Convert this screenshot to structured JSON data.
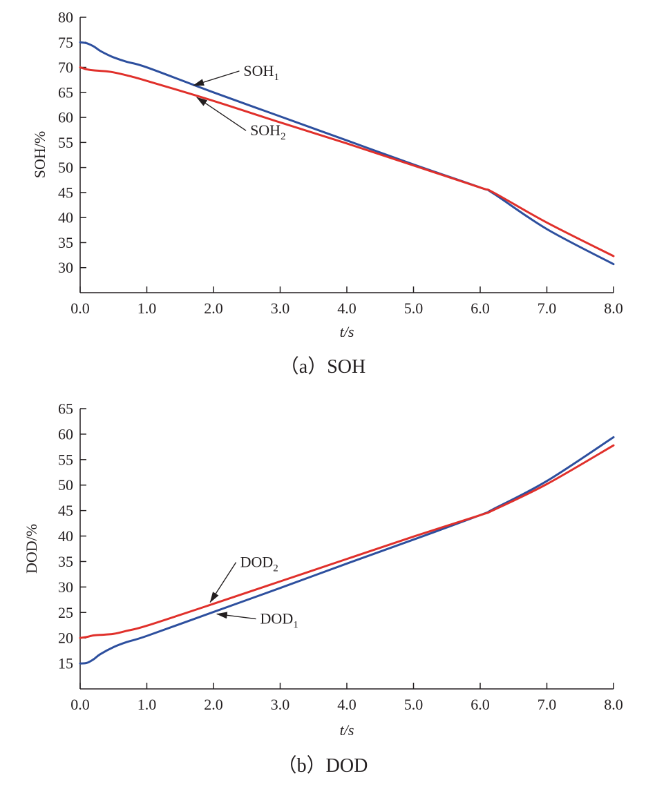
{
  "colors": {
    "blue": "#2d4f9e",
    "red": "#e0302b",
    "axis": "#231f20"
  },
  "chart_data": [
    {
      "id": "soh",
      "type": "line",
      "caption": "（a）SOH",
      "xlabel": "t/s",
      "ylabel": "SOH/%",
      "xlim": [
        0,
        8
      ],
      "ylim": [
        25,
        80
      ],
      "xticks": [
        0,
        1,
        2,
        3,
        4,
        5,
        6,
        7,
        8
      ],
      "xtick_labels": [
        "0.0",
        "1.0",
        "2.0",
        "3.0",
        "4.0",
        "5.0",
        "6.0",
        "7.0",
        "8.0"
      ],
      "yticks": [
        30,
        35,
        40,
        45,
        50,
        55,
        60,
        65,
        70,
        75,
        80
      ],
      "ytick_labels": [
        "30",
        "35",
        "40",
        "45",
        "50",
        "55",
        "60",
        "65",
        "70",
        "75",
        "80"
      ],
      "series": [
        {
          "name": "SOH1",
          "label_main": "SOH",
          "label_sub": "1",
          "color": "#2d4f9e",
          "points": [
            [
              0,
              75
            ],
            [
              0.1,
              74.8
            ],
            [
              0.2,
              74.2
            ],
            [
              0.3,
              73.3
            ],
            [
              0.4,
              72.6
            ],
            [
              0.5,
              72.0
            ],
            [
              0.7,
              71.1
            ],
            [
              1.0,
              70.0
            ],
            [
              2.0,
              65.0
            ],
            [
              3.0,
              60.2
            ],
            [
              4.0,
              55.4
            ],
            [
              5.0,
              50.6
            ],
            [
              6.0,
              46.0
            ],
            [
              6.2,
              44.8
            ],
            [
              7.0,
              37.7
            ],
            [
              8.0,
              30.7
            ]
          ]
        },
        {
          "name": "SOH2",
          "label_main": "SOH",
          "label_sub": "2",
          "color": "#e0302b",
          "points": [
            [
              0,
              70
            ],
            [
              0.1,
              69.6
            ],
            [
              0.2,
              69.4
            ],
            [
              0.3,
              69.3
            ],
            [
              0.4,
              69.2
            ],
            [
              0.5,
              69.0
            ],
            [
              0.7,
              68.4
            ],
            [
              1.0,
              67.3
            ],
            [
              2.0,
              63.3
            ],
            [
              3.0,
              59.0
            ],
            [
              4.0,
              54.8
            ],
            [
              5.0,
              50.4
            ],
            [
              6.0,
              46.0
            ],
            [
              6.2,
              45.0
            ],
            [
              7.0,
              39.0
            ],
            [
              8.0,
              32.3
            ]
          ]
        }
      ],
      "annotations": [
        {
          "main": "SOH",
          "sub": "1",
          "series": "SOH1",
          "arrow_to": [
            1.7,
            66.4
          ],
          "text_at": [
            2.45,
            68.3
          ]
        },
        {
          "main": "SOH",
          "sub": "2",
          "series": "SOH2",
          "arrow_to": [
            1.75,
            64.0
          ],
          "text_at": [
            2.55,
            56.4
          ]
        }
      ]
    },
    {
      "id": "dod",
      "type": "line",
      "caption": "（b）DOD",
      "xlabel": "t/s",
      "ylabel": "DOD/%",
      "xlim": [
        0,
        8
      ],
      "ylim": [
        10,
        65
      ],
      "xticks": [
        0,
        1,
        2,
        3,
        4,
        5,
        6,
        7,
        8
      ],
      "xtick_labels": [
        "0.0",
        "1.0",
        "2.0",
        "3.0",
        "4.0",
        "5.0",
        "6.0",
        "7.0",
        "8.0"
      ],
      "yticks": [
        15,
        20,
        25,
        30,
        35,
        40,
        45,
        50,
        55,
        60,
        65
      ],
      "ytick_labels": [
        "15",
        "20",
        "25",
        "30",
        "35",
        "40",
        "45",
        "50",
        "55",
        "60",
        "65"
      ],
      "series": [
        {
          "name": "DOD1",
          "label_main": "DOD",
          "label_sub": "1",
          "color": "#2d4f9e",
          "points": [
            [
              0,
              15
            ],
            [
              0.1,
              15.1
            ],
            [
              0.2,
              15.8
            ],
            [
              0.3,
              16.8
            ],
            [
              0.5,
              18.2
            ],
            [
              0.7,
              19.2
            ],
            [
              1.0,
              20.4
            ],
            [
              2.0,
              25.1
            ],
            [
              3.0,
              29.8
            ],
            [
              4.0,
              34.6
            ],
            [
              5.0,
              39.3
            ],
            [
              6.0,
              44.1
            ],
            [
              6.2,
              45.3
            ],
            [
              7.0,
              50.8
            ],
            [
              8.0,
              59.4
            ]
          ]
        },
        {
          "name": "DOD2",
          "label_main": "DOD",
          "label_sub": "2",
          "color": "#e0302b",
          "points": [
            [
              0,
              20
            ],
            [
              0.1,
              20.2
            ],
            [
              0.2,
              20.5
            ],
            [
              0.3,
              20.6
            ],
            [
              0.5,
              20.8
            ],
            [
              0.7,
              21.4
            ],
            [
              1.0,
              22.4
            ],
            [
              2.0,
              26.7
            ],
            [
              3.0,
              31.1
            ],
            [
              4.0,
              35.5
            ],
            [
              5.0,
              39.9
            ],
            [
              6.0,
              44.1
            ],
            [
              6.2,
              45.1
            ],
            [
              7.0,
              50.2
            ],
            [
              8.0,
              57.8
            ]
          ]
        }
      ],
      "annotations": [
        {
          "main": "DOD",
          "sub": "2",
          "series": "DOD2",
          "arrow_to": [
            1.95,
            27.0
          ],
          "text_at": [
            2.4,
            33.9
          ]
        },
        {
          "main": "DOD",
          "sub": "1",
          "series": "DOD1",
          "arrow_to": [
            2.05,
            24.7
          ],
          "text_at": [
            2.7,
            22.8
          ]
        }
      ]
    }
  ]
}
